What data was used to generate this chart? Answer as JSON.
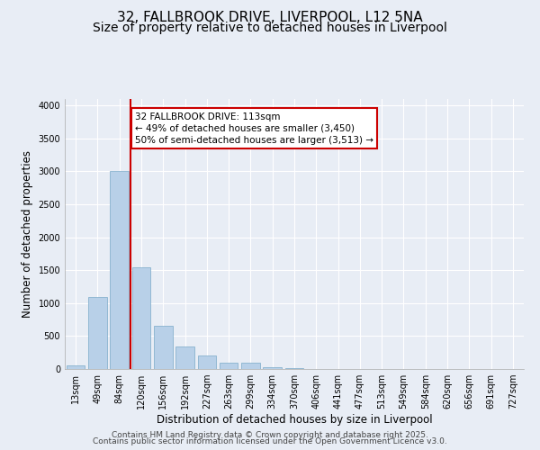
{
  "title_line1": "32, FALLBROOK DRIVE, LIVERPOOL, L12 5NA",
  "title_line2": "Size of property relative to detached houses in Liverpool",
  "xlabel": "Distribution of detached houses by size in Liverpool",
  "ylabel": "Number of detached properties",
  "categories": [
    "13sqm",
    "49sqm",
    "84sqm",
    "120sqm",
    "156sqm",
    "192sqm",
    "227sqm",
    "263sqm",
    "299sqm",
    "334sqm",
    "370sqm",
    "406sqm",
    "441sqm",
    "477sqm",
    "513sqm",
    "549sqm",
    "584sqm",
    "620sqm",
    "656sqm",
    "691sqm",
    "727sqm"
  ],
  "values": [
    50,
    1100,
    3000,
    1550,
    650,
    340,
    200,
    100,
    100,
    30,
    10,
    5,
    2,
    2,
    1,
    1,
    1,
    0,
    0,
    0,
    0
  ],
  "bar_color": "#b8d0e8",
  "bar_edge_color": "#7aaac8",
  "redline_label": "32 FALLBROOK DRIVE: 113sqm",
  "annotation_line2": "← 49% of detached houses are smaller (3,450)",
  "annotation_line3": "50% of semi-detached houses are larger (3,513) →",
  "annotation_box_color": "#ffffff",
  "annotation_box_edge": "#cc0000",
  "vline_color": "#cc0000",
  "redline_x": 2.5,
  "ylim": [
    0,
    4100
  ],
  "yticks": [
    0,
    500,
    1000,
    1500,
    2000,
    2500,
    3000,
    3500,
    4000
  ],
  "bg_color": "#e8edf5",
  "plot_bg_color": "#e8edf5",
  "grid_color": "#ffffff",
  "footer_line1": "Contains HM Land Registry data © Crown copyright and database right 2025.",
  "footer_line2": "Contains public sector information licensed under the Open Government Licence v3.0.",
  "title_fontsize": 11,
  "subtitle_fontsize": 10,
  "axis_label_fontsize": 8.5,
  "tick_fontsize": 7,
  "annotation_fontsize": 7.5,
  "footer_fontsize": 6.5
}
